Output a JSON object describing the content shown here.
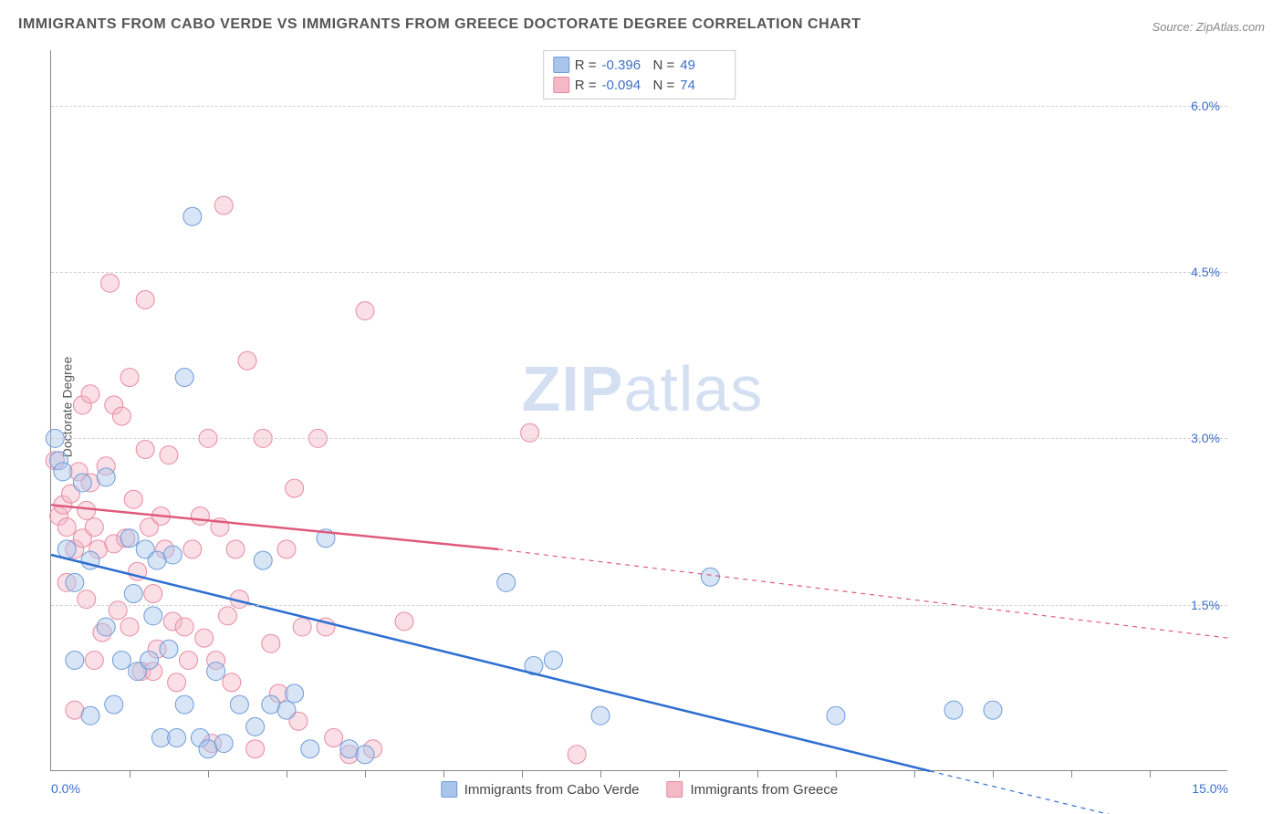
{
  "title": "IMMIGRANTS FROM CABO VERDE VS IMMIGRANTS FROM GREECE DOCTORATE DEGREE CORRELATION CHART",
  "source": "Source: ZipAtlas.com",
  "watermark_bold": "ZIP",
  "watermark_light": "atlas",
  "chart": {
    "type": "scatter",
    "ylabel": "Doctorate Degree",
    "xlim": [
      0.0,
      15.0
    ],
    "ylim": [
      0.0,
      6.5
    ],
    "xtick_labels": [
      "0.0%",
      "15.0%"
    ],
    "xtick_positions": [
      0.0,
      15.0
    ],
    "xtick_minor": [
      1,
      2,
      3,
      4,
      5,
      6,
      7,
      8,
      9,
      10,
      11,
      12,
      13,
      14
    ],
    "ytick_labels": [
      "1.5%",
      "3.0%",
      "4.5%",
      "6.0%"
    ],
    "ytick_positions": [
      1.5,
      3.0,
      4.5,
      6.0
    ],
    "grid_color": "#d0d0d0",
    "axis_color": "#888888",
    "background_color": "#ffffff",
    "marker_radius": 10,
    "marker_opacity": 0.45,
    "series": [
      {
        "name": "Immigrants from Cabo Verde",
        "color_fill": "#a9c5ec",
        "color_stroke": "#6f9bd8",
        "line_color": "#2e6fd0",
        "R": "-0.396",
        "N": "49",
        "trend": {
          "x1": 0.0,
          "y1": 1.95,
          "x2": 11.2,
          "y2": 0.0,
          "dash_x1": 11.2,
          "dash_y1": 0.0,
          "dash_x2": 15.0,
          "dash_y2": -0.65
        },
        "line_width": 2.5,
        "points": [
          [
            0.05,
            3.0
          ],
          [
            0.1,
            2.8
          ],
          [
            0.15,
            2.7
          ],
          [
            0.2,
            2.0
          ],
          [
            0.3,
            1.7
          ],
          [
            0.3,
            1.0
          ],
          [
            0.4,
            2.6
          ],
          [
            0.5,
            1.9
          ],
          [
            0.5,
            0.5
          ],
          [
            0.7,
            2.65
          ],
          [
            0.7,
            1.3
          ],
          [
            0.8,
            0.6
          ],
          [
            0.9,
            1.0
          ],
          [
            1.0,
            2.1
          ],
          [
            1.05,
            1.6
          ],
          [
            1.1,
            0.9
          ],
          [
            1.2,
            2.0
          ],
          [
            1.25,
            1.0
          ],
          [
            1.3,
            1.4
          ],
          [
            1.35,
            1.9
          ],
          [
            1.4,
            0.3
          ],
          [
            1.5,
            1.1
          ],
          [
            1.55,
            1.95
          ],
          [
            1.6,
            0.3
          ],
          [
            1.7,
            3.55
          ],
          [
            1.7,
            0.6
          ],
          [
            1.8,
            5.0
          ],
          [
            1.9,
            0.3
          ],
          [
            2.0,
            0.2
          ],
          [
            2.1,
            0.9
          ],
          [
            2.2,
            0.25
          ],
          [
            2.4,
            0.6
          ],
          [
            2.6,
            0.4
          ],
          [
            2.7,
            1.9
          ],
          [
            2.8,
            0.6
          ],
          [
            3.0,
            0.55
          ],
          [
            3.1,
            0.7
          ],
          [
            3.3,
            0.2
          ],
          [
            3.5,
            2.1
          ],
          [
            3.8,
            0.2
          ],
          [
            4.0,
            0.15
          ],
          [
            5.8,
            1.7
          ],
          [
            6.15,
            0.95
          ],
          [
            6.4,
            1.0
          ],
          [
            7.0,
            0.5
          ],
          [
            8.4,
            1.75
          ],
          [
            10.0,
            0.5
          ],
          [
            11.5,
            0.55
          ],
          [
            12.0,
            0.55
          ]
        ]
      },
      {
        "name": "Immigrants from Greece",
        "color_fill": "#f4b9c7",
        "color_stroke": "#e88aa2",
        "line_color": "#e05a7c",
        "R": "-0.094",
        "N": "74",
        "trend": {
          "x1": 0.0,
          "y1": 2.4,
          "x2": 5.7,
          "y2": 2.0,
          "dash_x1": 5.7,
          "dash_y1": 2.0,
          "dash_x2": 15.0,
          "dash_y2": 1.2
        },
        "line_width": 2.5,
        "points": [
          [
            0.05,
            2.8
          ],
          [
            0.1,
            2.3
          ],
          [
            0.15,
            2.4
          ],
          [
            0.2,
            2.2
          ],
          [
            0.2,
            1.7
          ],
          [
            0.25,
            2.5
          ],
          [
            0.3,
            2.0
          ],
          [
            0.3,
            0.55
          ],
          [
            0.35,
            2.7
          ],
          [
            0.4,
            3.3
          ],
          [
            0.4,
            2.1
          ],
          [
            0.45,
            2.35
          ],
          [
            0.45,
            1.55
          ],
          [
            0.5,
            3.4
          ],
          [
            0.5,
            2.6
          ],
          [
            0.55,
            2.2
          ],
          [
            0.55,
            1.0
          ],
          [
            0.6,
            2.0
          ],
          [
            0.65,
            1.25
          ],
          [
            0.7,
            2.75
          ],
          [
            0.75,
            4.4
          ],
          [
            0.8,
            3.3
          ],
          [
            0.8,
            2.05
          ],
          [
            0.85,
            1.45
          ],
          [
            0.9,
            3.2
          ],
          [
            0.95,
            2.1
          ],
          [
            1.0,
            3.55
          ],
          [
            1.0,
            1.3
          ],
          [
            1.05,
            2.45
          ],
          [
            1.1,
            1.8
          ],
          [
            1.15,
            0.9
          ],
          [
            1.2,
            4.25
          ],
          [
            1.2,
            2.9
          ],
          [
            1.25,
            2.2
          ],
          [
            1.3,
            1.6
          ],
          [
            1.3,
            0.9
          ],
          [
            1.35,
            1.1
          ],
          [
            1.4,
            2.3
          ],
          [
            1.45,
            2.0
          ],
          [
            1.5,
            2.85
          ],
          [
            1.55,
            1.35
          ],
          [
            1.6,
            0.8
          ],
          [
            1.7,
            1.3
          ],
          [
            1.75,
            1.0
          ],
          [
            1.8,
            2.0
          ],
          [
            1.9,
            2.3
          ],
          [
            1.95,
            1.2
          ],
          [
            2.0,
            3.0
          ],
          [
            2.05,
            0.25
          ],
          [
            2.1,
            1.0
          ],
          [
            2.15,
            2.2
          ],
          [
            2.2,
            5.1
          ],
          [
            2.25,
            1.4
          ],
          [
            2.3,
            0.8
          ],
          [
            2.35,
            2.0
          ],
          [
            2.4,
            1.55
          ],
          [
            2.5,
            3.7
          ],
          [
            2.6,
            0.2
          ],
          [
            2.7,
            3.0
          ],
          [
            2.8,
            1.15
          ],
          [
            2.9,
            0.7
          ],
          [
            3.0,
            2.0
          ],
          [
            3.1,
            2.55
          ],
          [
            3.15,
            0.45
          ],
          [
            3.2,
            1.3
          ],
          [
            3.4,
            3.0
          ],
          [
            3.5,
            1.3
          ],
          [
            3.6,
            0.3
          ],
          [
            3.8,
            0.15
          ],
          [
            4.0,
            4.15
          ],
          [
            4.1,
            0.2
          ],
          [
            4.5,
            1.35
          ],
          [
            6.1,
            3.05
          ],
          [
            6.7,
            0.15
          ]
        ]
      }
    ]
  },
  "legend": {
    "stats_labels": {
      "R": "R =",
      "N": "N ="
    }
  }
}
